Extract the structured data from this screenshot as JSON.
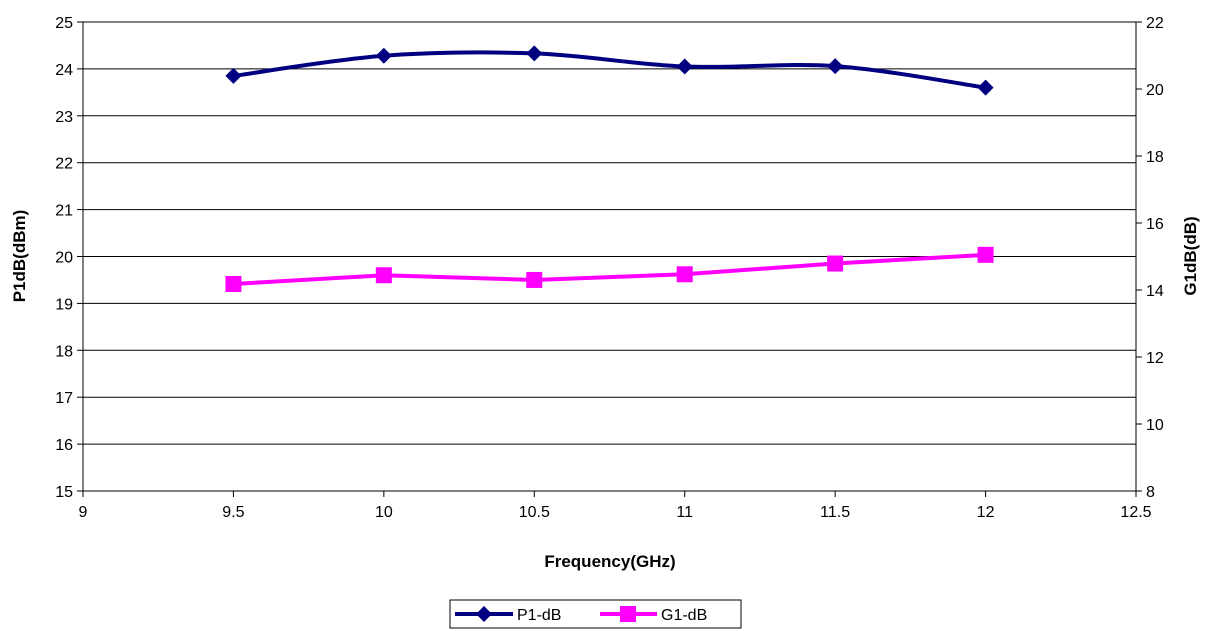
{
  "chart_data": {
    "type": "line",
    "xlabel": "Frequency(GHz)",
    "ylabel_left": "P1dB(dBm)",
    "ylabel_right": "G1dB(dB)",
    "xlim": [
      9,
      12.5
    ],
    "xticks": [
      "9",
      "9.5",
      "10",
      "10.5",
      "11",
      "11.5",
      "12",
      "12.5"
    ],
    "ylim_left": [
      15,
      25
    ],
    "yticks_left": [
      "15",
      "16",
      "17",
      "18",
      "19",
      "20",
      "21",
      "22",
      "23",
      "24",
      "25"
    ],
    "ylim_right": [
      8,
      22
    ],
    "yticks_right": [
      "8",
      "10",
      "12",
      "14",
      "16",
      "18",
      "20",
      "22"
    ],
    "grid": "horizontal",
    "legend_position": "bottom-center",
    "series": [
      {
        "name": "P1-dB",
        "axis": "left",
        "color": "#000080",
        "marker": "diamond",
        "smooth": true,
        "x": [
          9.5,
          10,
          10.5,
          11,
          11.5,
          12
        ],
        "y": [
          23.85,
          24.28,
          24.33,
          24.05,
          24.06,
          23.6
        ]
      },
      {
        "name": "G1-dB",
        "axis": "right",
        "color": "#FF00FF",
        "marker": "square",
        "smooth": false,
        "x": [
          9.5,
          10,
          10.5,
          11,
          11.5,
          12
        ],
        "y": [
          14.18,
          14.44,
          14.3,
          14.47,
          14.79,
          15.05
        ]
      }
    ]
  }
}
